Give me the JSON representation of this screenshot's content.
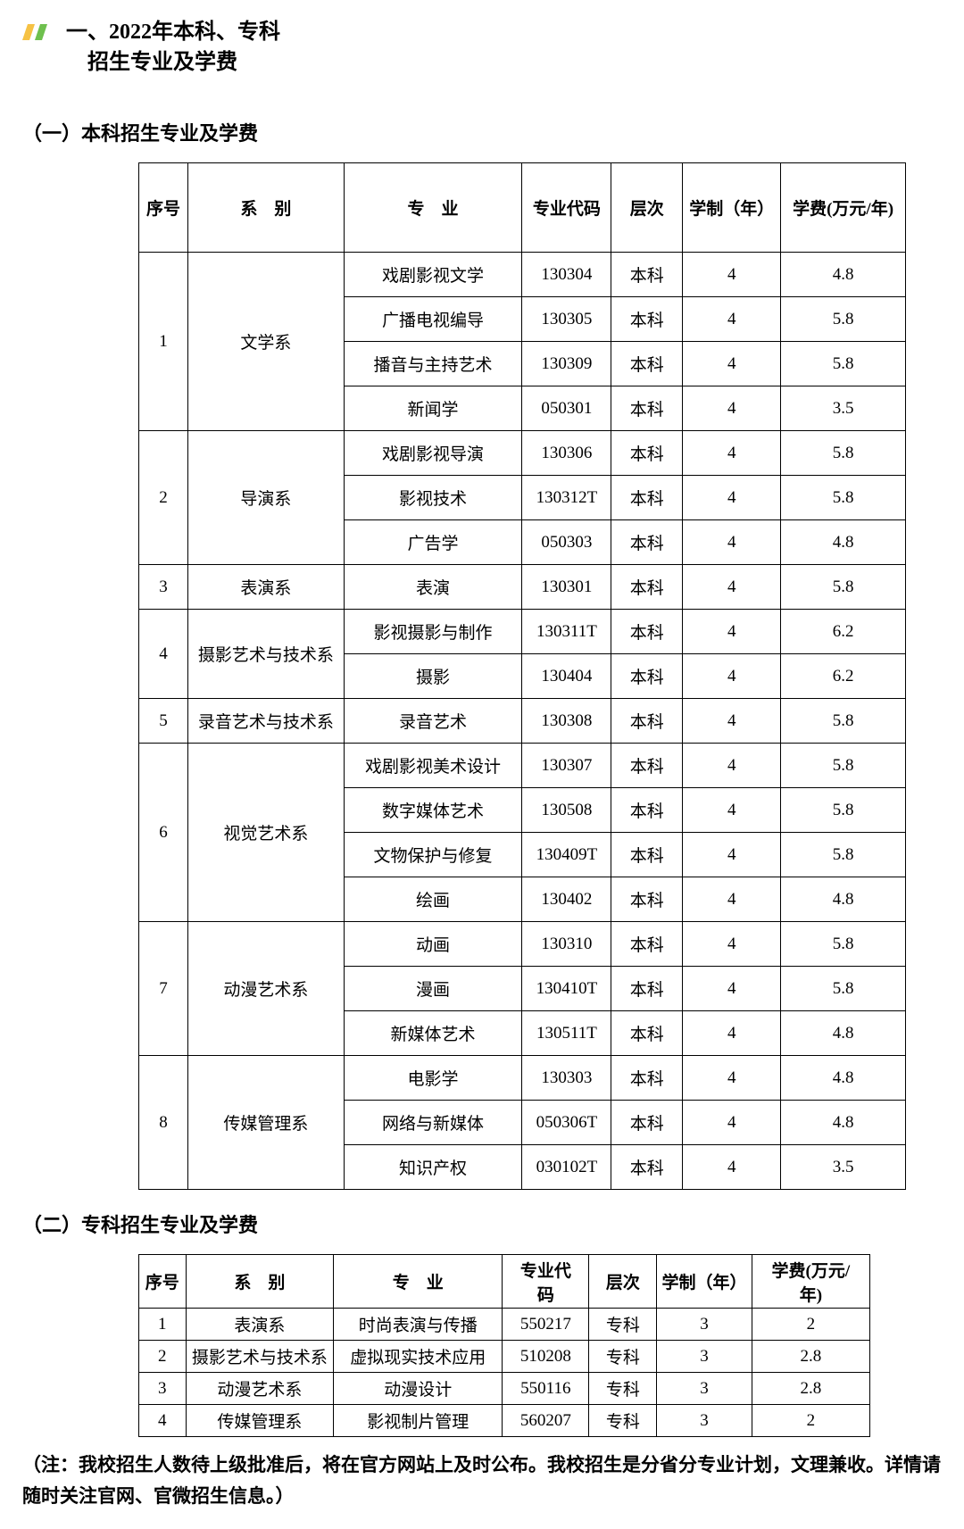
{
  "header": {
    "title_line1": "一、2022年本科、专科",
    "title_line2": "招生专业及学费",
    "accent_colors": [
      "#f6c244",
      "#6ec04e"
    ]
  },
  "section1": {
    "heading": "（一）本科招生专业及学费",
    "columns": [
      "序号",
      "系　别",
      "专　业",
      "专业代码",
      "层次",
      "学制（年）",
      "学费(万元/年)"
    ],
    "groups": [
      {
        "seq": "1",
        "dept": "文学系",
        "rows": [
          {
            "major": "戏剧影视文学",
            "code": "130304",
            "level": "本科",
            "years": "4",
            "fee": "4.8"
          },
          {
            "major": "广播电视编导",
            "code": "130305",
            "level": "本科",
            "years": "4",
            "fee": "5.8"
          },
          {
            "major": "播音与主持艺术",
            "code": "130309",
            "level": "本科",
            "years": "4",
            "fee": "5.8"
          },
          {
            "major": "新闻学",
            "code": "050301",
            "level": "本科",
            "years": "4",
            "fee": "3.5"
          }
        ]
      },
      {
        "seq": "2",
        "dept": "导演系",
        "rows": [
          {
            "major": "戏剧影视导演",
            "code": "130306",
            "level": "本科",
            "years": "4",
            "fee": "5.8"
          },
          {
            "major": "影视技术",
            "code": "130312T",
            "level": "本科",
            "years": "4",
            "fee": "5.8"
          },
          {
            "major": "广告学",
            "code": "050303",
            "level": "本科",
            "years": "4",
            "fee": "4.8"
          }
        ]
      },
      {
        "seq": "3",
        "dept": "表演系",
        "rows": [
          {
            "major": "表演",
            "code": "130301",
            "level": "本科",
            "years": "4",
            "fee": "5.8"
          }
        ]
      },
      {
        "seq": "4",
        "dept": "摄影艺术与技术系",
        "rows": [
          {
            "major": "影视摄影与制作",
            "code": "130311T",
            "level": "本科",
            "years": "4",
            "fee": "6.2"
          },
          {
            "major": "摄影",
            "code": "130404",
            "level": "本科",
            "years": "4",
            "fee": "6.2"
          }
        ]
      },
      {
        "seq": "5",
        "dept": "录音艺术与技术系",
        "rows": [
          {
            "major": "录音艺术",
            "code": "130308",
            "level": "本科",
            "years": "4",
            "fee": "5.8"
          }
        ]
      },
      {
        "seq": "6",
        "dept": "视觉艺术系",
        "rows": [
          {
            "major": "戏剧影视美术设计",
            "code": "130307",
            "level": "本科",
            "years": "4",
            "fee": "5.8"
          },
          {
            "major": "数字媒体艺术",
            "code": "130508",
            "level": "本科",
            "years": "4",
            "fee": "5.8"
          },
          {
            "major": "文物保护与修复",
            "code": "130409T",
            "level": "本科",
            "years": "4",
            "fee": "5.8"
          },
          {
            "major": "绘画",
            "code": "130402",
            "level": "本科",
            "years": "4",
            "fee": "4.8"
          }
        ]
      },
      {
        "seq": "7",
        "dept": "动漫艺术系",
        "rows": [
          {
            "major": "动画",
            "code": "130310",
            "level": "本科",
            "years": "4",
            "fee": "5.8"
          },
          {
            "major": "漫画",
            "code": "130410T",
            "level": "本科",
            "years": "4",
            "fee": "5.8"
          },
          {
            "major": "新媒体艺术",
            "code": "130511T",
            "level": "本科",
            "years": "4",
            "fee": "4.8"
          }
        ]
      },
      {
        "seq": "8",
        "dept": "传媒管理系",
        "rows": [
          {
            "major": "电影学",
            "code": "130303",
            "level": "本科",
            "years": "4",
            "fee": "4.8"
          },
          {
            "major": "网络与新媒体",
            "code": "050306T",
            "level": "本科",
            "years": "4",
            "fee": "4.8"
          },
          {
            "major": "知识产权",
            "code": "030102T",
            "level": "本科",
            "years": "4",
            "fee": "3.5"
          }
        ]
      }
    ]
  },
  "section2": {
    "heading": "（二）专科招生专业及学费",
    "columns": [
      "序号",
      "系　别",
      "专　业",
      "专业代\n码",
      "层次",
      "学制（年）",
      "学费(万元/\n年)"
    ],
    "rows": [
      {
        "seq": "1",
        "dept": "表演系",
        "major": "时尚表演与传播",
        "code": "550217",
        "level": "专科",
        "years": "3",
        "fee": "2"
      },
      {
        "seq": "2",
        "dept": "摄影艺术与技术系",
        "major": "虚拟现实技术应用",
        "code": "510208",
        "level": "专科",
        "years": "3",
        "fee": "2.8"
      },
      {
        "seq": "3",
        "dept": "动漫艺术系",
        "major": "动漫设计",
        "code": "550116",
        "level": "专科",
        "years": "3",
        "fee": "2.8"
      },
      {
        "seq": "4",
        "dept": "传媒管理系",
        "major": "影视制片管理",
        "code": "560207",
        "level": "专科",
        "years": "3",
        "fee": "2"
      }
    ]
  },
  "footnote": "（注：我校招生人数待上级批准后，将在官方网站上及时公布。我校招生是分省分专业计划，文理兼收。详情请随时关注官网、官微招生信息。）"
}
